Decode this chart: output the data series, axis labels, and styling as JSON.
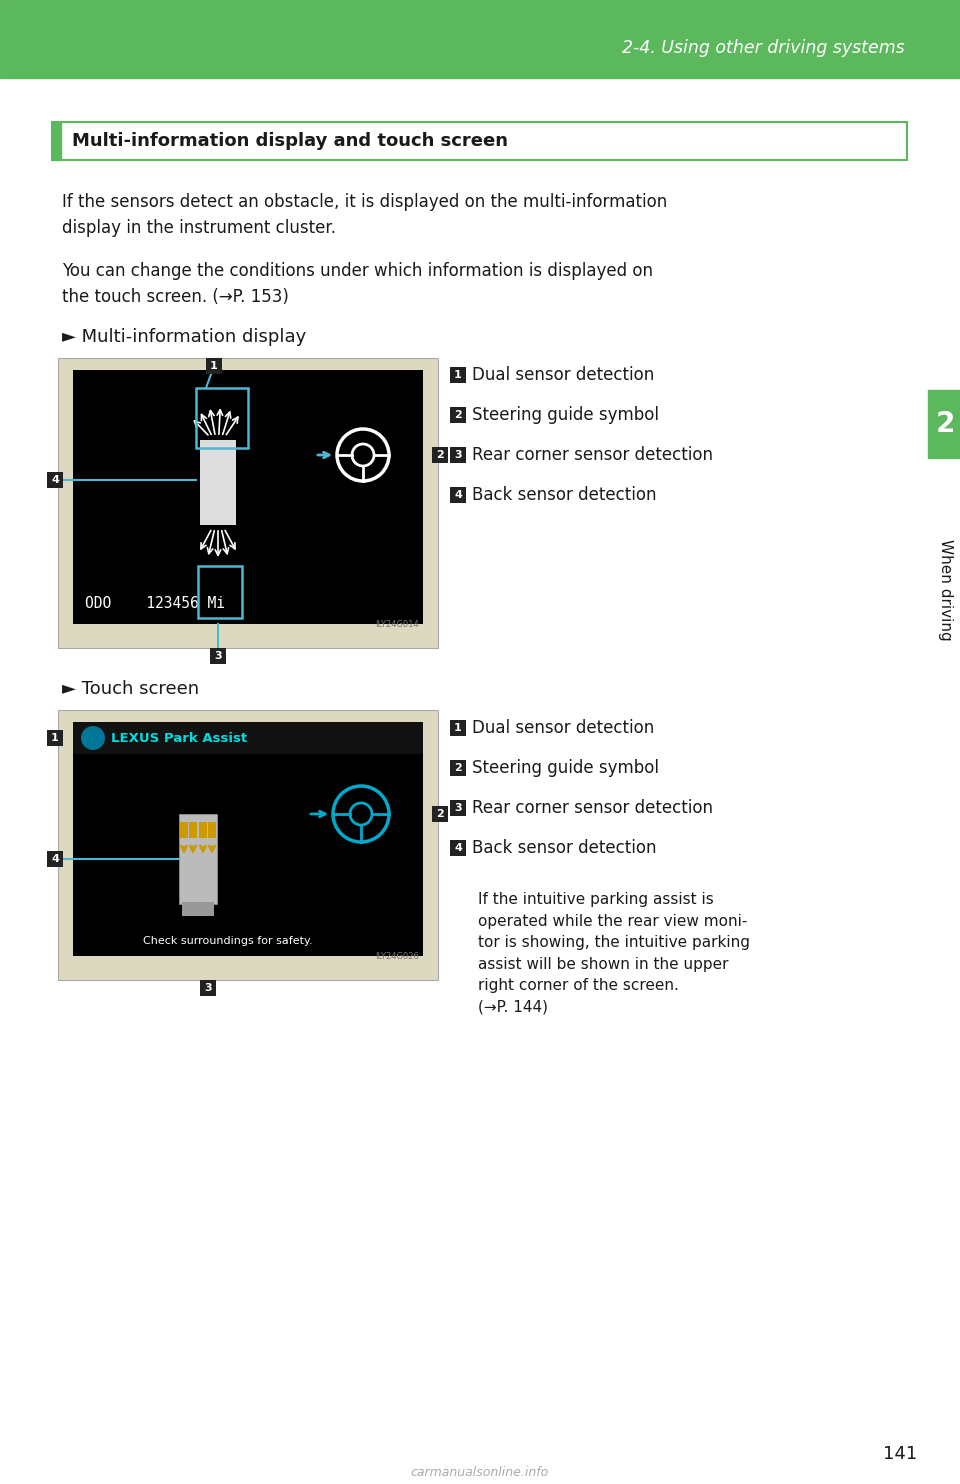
{
  "page_bg": "#ffffff",
  "header_bg": "#5cb85c",
  "header_text": "2-4. Using other driving systems",
  "header_text_color": "#ffffff",
  "side_tab_color": "#5cb85c",
  "side_tab_text": "2",
  "side_tab_text2": "When driving",
  "section_title": "Multi-information display and touch screen",
  "body_text1": "If the sensors detect an obstacle, it is displayed on the multi-information\ndisplay in the instrument cluster.",
  "body_text2": "You can change the conditions under which information is displayed on\nthe touch screen. (→P. 153)",
  "subsection1": "► Multi-information display",
  "subsection2": "► Touch screen",
  "labels1": [
    "1 Dual sensor detection",
    "2 Steering guide symbol",
    "3 Rear corner sensor detection",
    "4 Back sensor detection"
  ],
  "labels2": [
    "1 Dual sensor detection",
    "2 Steering guide symbol",
    "3 Rear corner sensor detection",
    "4 Back sensor detection"
  ],
  "touch_extra_text": "If the intuitive parking assist is\noperated while the rear view moni-\ntor is showing, the intuitive parking\nassist will be shown in the upper\nright corner of the screen.\n(→P. 144)",
  "page_number": "141",
  "img1_code": "ILY24G014",
  "img2_code": "ILY24G026",
  "text_color": "#1a1a1a",
  "green": "#5cb85c",
  "cyan_line": "#4db8d4",
  "label_box_color": "#333333",
  "label_box_text_color": "#ffffff"
}
